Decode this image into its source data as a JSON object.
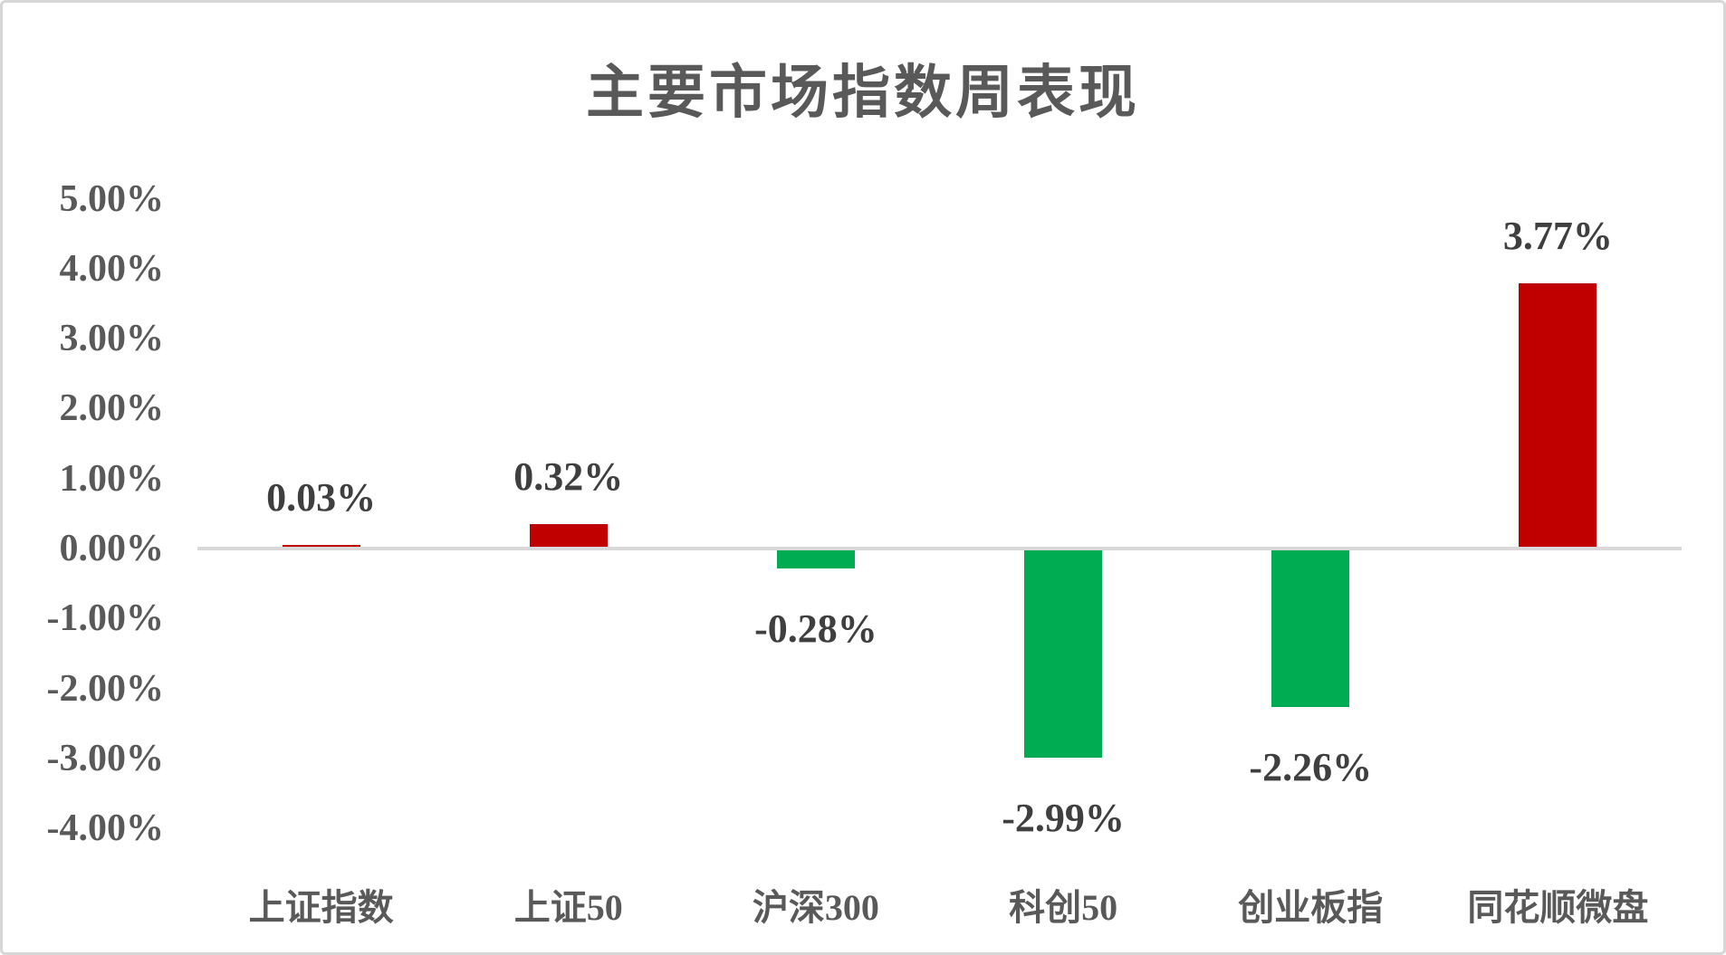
{
  "window": {
    "background": "#ffffff",
    "border_color": "#d6d6d6"
  },
  "chart_data": {
    "type": "bar",
    "title": "主要市场指数周表现",
    "categories": [
      "上证指数",
      "上证50",
      "沪深300",
      "科创50",
      "创业板指",
      "同花顺微盘"
    ],
    "values": [
      0.03,
      0.32,
      -0.28,
      -2.99,
      -2.26,
      3.77
    ],
    "data_labels": [
      "0.03%",
      "0.32%",
      "-0.28%",
      "-2.99%",
      "-2.26%",
      "3.77%"
    ],
    "y_ticks": [
      {
        "label": "5.00%",
        "value": 5
      },
      {
        "label": "4.00%",
        "value": 4
      },
      {
        "label": "3.00%",
        "value": 3
      },
      {
        "label": "2.00%",
        "value": 2
      },
      {
        "label": "1.00%",
        "value": 1
      },
      {
        "label": "0.00%",
        "value": 0
      },
      {
        "label": "-1.00%",
        "value": -1
      },
      {
        "label": "-2.00%",
        "value": -2
      },
      {
        "label": "-3.00%",
        "value": -3
      },
      {
        "label": "-4.00%",
        "value": -4
      }
    ],
    "ylim": [
      -4,
      5
    ],
    "xlabel": "",
    "ylabel": "",
    "grid": false,
    "legend": "none",
    "colors": {
      "positive_bar": "#c00000",
      "negative_bar": "#00ac52",
      "axis_line": "#d9d9d9",
      "title_text": "#595959",
      "tick_text": "#595959",
      "category_text": "#595959",
      "data_label_text": "#3f3f3f"
    }
  }
}
